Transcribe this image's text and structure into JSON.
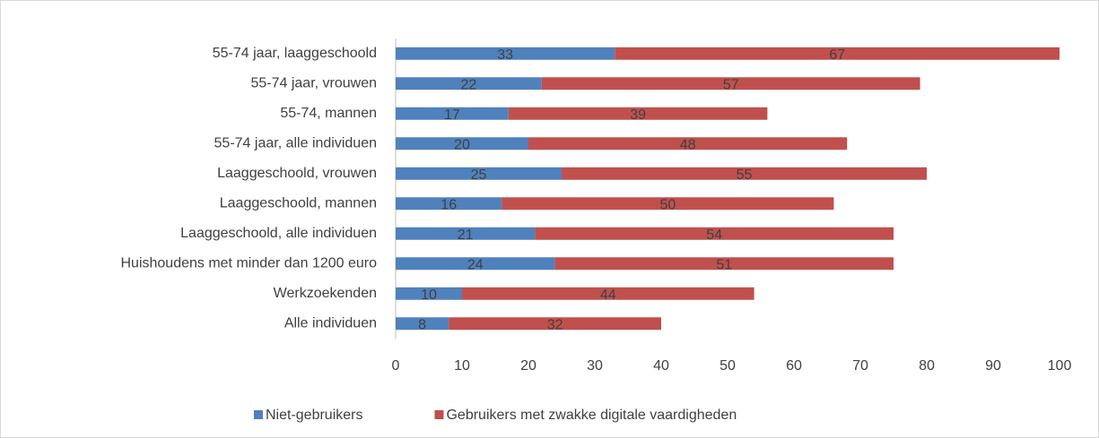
{
  "chart_data": {
    "type": "bar",
    "orientation": "horizontal",
    "stacked": true,
    "categories": [
      "55-74 jaar, laaggeschoold",
      "55-74 jaar, vrouwen",
      "55-74, mannen",
      "55-74 jaar, alle individuen",
      "Laaggeschoold, vrouwen",
      "Laaggeschoold, mannen",
      "Laaggeschoold, alle individuen",
      "Huishoudens met minder dan 1200 euro",
      "Werkzoekenden",
      "Alle individuen"
    ],
    "series": [
      {
        "name": "Niet-gebruikers",
        "color": "#4f81bd",
        "values": [
          33,
          22,
          17,
          20,
          25,
          16,
          21,
          24,
          10,
          8
        ]
      },
      {
        "name": "Gebruikers met zwakke digitale vaardigheden",
        "color": "#c0504d",
        "values": [
          67,
          57,
          39,
          48,
          55,
          50,
          54,
          51,
          44,
          32
        ]
      }
    ],
    "xlim": [
      0,
      100
    ],
    "xticks": [
      0,
      10,
      20,
      30,
      40,
      50,
      60,
      70,
      80,
      90,
      100
    ],
    "grid": false,
    "legend": "bottom"
  }
}
